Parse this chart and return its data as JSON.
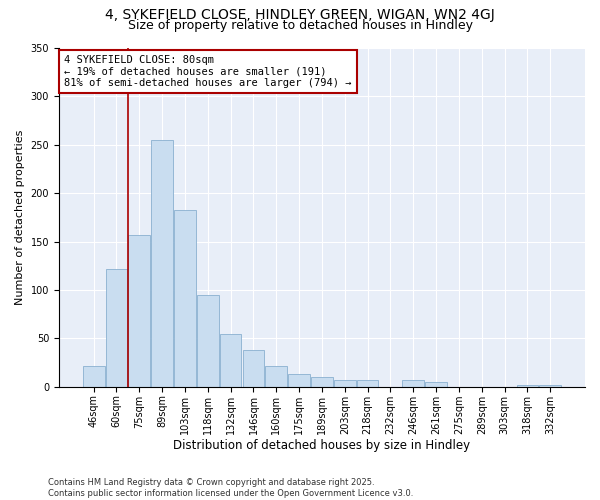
{
  "title1": "4, SYKEFIELD CLOSE, HINDLEY GREEN, WIGAN, WN2 4GJ",
  "title2": "Size of property relative to detached houses in Hindley",
  "xlabel": "Distribution of detached houses by size in Hindley",
  "ylabel": "Number of detached properties",
  "categories": [
    "46sqm",
    "60sqm",
    "75sqm",
    "89sqm",
    "103sqm",
    "118sqm",
    "132sqm",
    "146sqm",
    "160sqm",
    "175sqm",
    "189sqm",
    "203sqm",
    "218sqm",
    "232sqm",
    "246sqm",
    "261sqm",
    "275sqm",
    "289sqm",
    "303sqm",
    "318sqm",
    "332sqm"
  ],
  "values": [
    22,
    122,
    157,
    255,
    183,
    95,
    55,
    38,
    22,
    13,
    10,
    7,
    7,
    0,
    7,
    5,
    0,
    0,
    0,
    2,
    2
  ],
  "bar_color": "#c9ddf0",
  "bar_edge_color": "#8ab0d0",
  "vline_x": 1.5,
  "vline_color": "#aa0000",
  "annotation_text": "4 SYKEFIELD CLOSE: 80sqm\n← 19% of detached houses are smaller (191)\n81% of semi-detached houses are larger (794) →",
  "annotation_box_color": "white",
  "annotation_box_edge": "#aa0000",
  "ylim": [
    0,
    350
  ],
  "yticks": [
    0,
    50,
    100,
    150,
    200,
    250,
    300,
    350
  ],
  "background_color": "#e8eef8",
  "grid_color": "#ffffff",
  "footer": "Contains HM Land Registry data © Crown copyright and database right 2025.\nContains public sector information licensed under the Open Government Licence v3.0.",
  "title_fontsize": 10,
  "subtitle_fontsize": 9,
  "tick_fontsize": 7,
  "xlabel_fontsize": 8.5,
  "ylabel_fontsize": 8,
  "footer_fontsize": 6,
  "annotation_fontsize": 7.5
}
